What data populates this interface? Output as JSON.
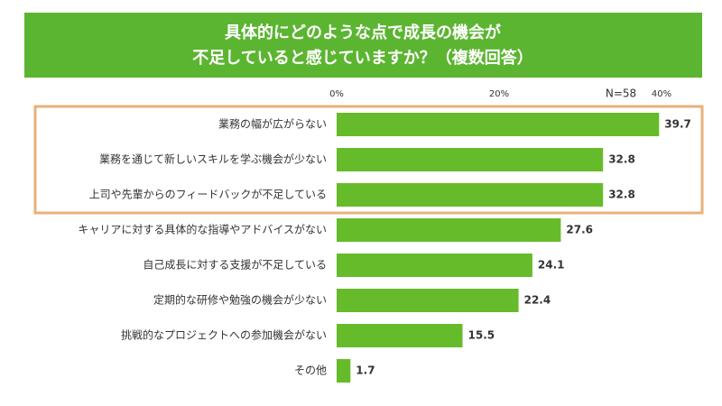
{
  "chart_data": {
    "type": "barh",
    "title_lines": [
      "具体的にどのような点で成長の機会が",
      "不足していると感じていますか？（複数回答）"
    ],
    "annotation": "N=58",
    "categories": [
      "業務の幅が広がらない",
      "業務を通じて新しいスキルを学ぶ機会が少ない",
      "上司や先輩からのフィードバックが不足している",
      "キャリアに対する具体的な指導やアドバイスがない",
      "自己成長に対する支援が不足している",
      "定期的な研修や勉強の機会が少ない",
      "挑戦的なプロジェクトへの参加機会がない",
      "その他"
    ],
    "values": [
      39.7,
      32.8,
      32.8,
      27.6,
      24.1,
      22.4,
      15.5,
      1.7
    ],
    "color": "#66bb2a",
    "xlim": [
      0,
      40
    ],
    "xticks": [
      {
        "value": 0,
        "label": "0%"
      },
      {
        "value": 20,
        "label": "20%"
      },
      {
        "value": 40,
        "label": "40%"
      }
    ]
  }
}
